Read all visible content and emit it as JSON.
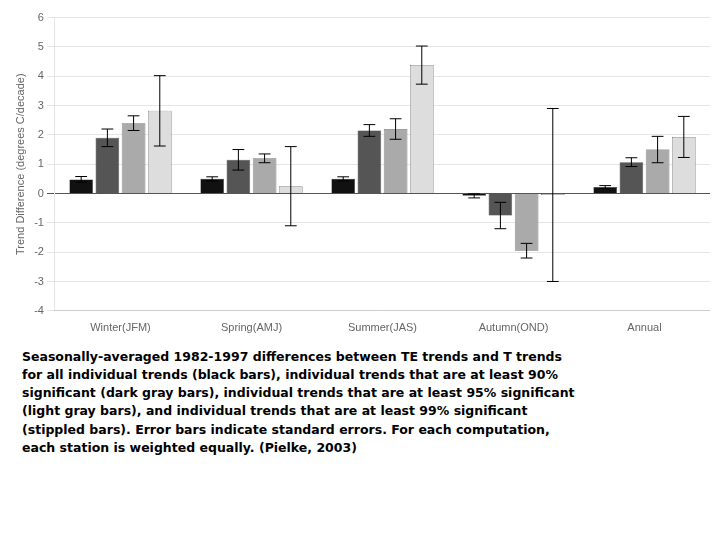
{
  "chart_data": {
    "type": "bar",
    "categories": [
      "Winter(JFM)",
      "Spring(AMJ)",
      "Summer(JAS)",
      "Autumn(OND)",
      "Annual"
    ],
    "series": [
      {
        "color": "#111111",
        "values": [
          0.48,
          0.5,
          0.5,
          -0.08,
          0.22
        ],
        "errors": [
          0.1,
          0.07,
          0.07,
          0.07,
          0.05
        ]
      },
      {
        "color": "#555555",
        "values": [
          1.9,
          1.15,
          2.15,
          -0.75,
          1.07
        ],
        "errors": [
          0.3,
          0.35,
          0.2,
          0.45,
          0.15
        ]
      },
      {
        "color": "#aaaaaa",
        "values": [
          2.4,
          1.2,
          2.2,
          -1.95,
          1.5
        ],
        "errors": [
          0.25,
          0.15,
          0.35,
          0.25,
          0.45
        ]
      },
      {
        "color": "#dddddd",
        "values": [
          2.82,
          0.25,
          4.38,
          -0.05,
          1.93
        ],
        "errors": [
          1.2,
          1.35,
          0.65,
          2.95,
          0.7
        ]
      }
    ],
    "ylabel": "Trend Difference (degrees C/decade)",
    "ylim": [
      -4,
      6
    ],
    "yticks": [
      -4,
      -3,
      -2,
      -1,
      0,
      1,
      2,
      3,
      4,
      5,
      6
    ],
    "grid": true,
    "annotations": [
      "Seasonally-averaged 1982-1997 differences between TE trends and T trends",
      "for all individual trends (black bars), individual trends that are at least 90%",
      "significant (dark gray bars), individual trends that are at least 95% significant",
      "(light gray bars), and individual trends that are at least 99% significant",
      "(stippled bars). Error bars indicate standard errors. For each computation,",
      "each station is weighted equally. (Pielke, 2003)"
    ]
  }
}
